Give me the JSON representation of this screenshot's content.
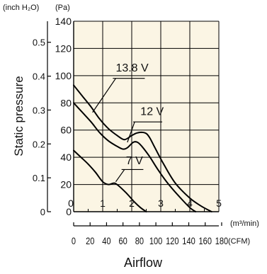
{
  "chart_data": {
    "type": "line",
    "title": "",
    "units": {
      "pressure_primary": "(Pa)",
      "pressure_secondary": "(inch H₂O)",
      "flow_primary": "(m³/min)",
      "flow_secondary": "(CFM)"
    },
    "xlabel": "Airflow",
    "ylabel": "Static pressure",
    "xlim": [
      0,
      5
    ],
    "ylim": [
      0,
      140
    ],
    "grid": true,
    "x_ticks": [
      "0",
      "1",
      "2",
      "3",
      "4",
      "5"
    ],
    "y_ticks": [
      "0",
      "20",
      "40",
      "60",
      "80",
      "100",
      "120",
      "140"
    ],
    "y2_ticks": [
      "0",
      "0.1",
      "0.2",
      "0.3",
      "0.4",
      "0.5"
    ],
    "cfm_ticks": [
      "0",
      "20",
      "40",
      "60",
      "80",
      "100",
      "120",
      "140",
      "160",
      "180"
    ],
    "series": [
      {
        "name": "13.8 V",
        "points": [
          [
            0,
            93
          ],
          [
            0.3,
            85
          ],
          [
            0.6,
            77
          ],
          [
            0.9,
            68
          ],
          [
            1.2,
            61
          ],
          [
            1.5,
            56
          ],
          [
            1.75,
            53
          ],
          [
            2.0,
            56
          ],
          [
            2.2,
            58
          ],
          [
            2.45,
            58
          ],
          [
            2.6,
            55
          ],
          [
            2.8,
            47
          ],
          [
            3.1,
            35
          ],
          [
            3.5,
            21
          ],
          [
            4.0,
            10
          ],
          [
            4.4,
            4
          ],
          [
            4.75,
            0
          ]
        ]
      },
      {
        "name": "12 V",
        "points": [
          [
            0,
            80
          ],
          [
            0.3,
            73
          ],
          [
            0.6,
            66
          ],
          [
            0.9,
            58
          ],
          [
            1.2,
            52
          ],
          [
            1.5,
            48
          ],
          [
            1.7,
            46
          ],
          [
            1.85,
            47
          ],
          [
            2.05,
            51
          ],
          [
            2.2,
            51
          ],
          [
            2.35,
            48
          ],
          [
            2.6,
            41
          ],
          [
            2.9,
            31
          ],
          [
            3.2,
            22
          ],
          [
            3.6,
            12
          ],
          [
            4.0,
            3
          ],
          [
            4.2,
            0
          ]
        ]
      },
      {
        "name": "7 V",
        "points": [
          [
            0,
            45
          ],
          [
            0.25,
            40
          ],
          [
            0.5,
            35
          ],
          [
            0.75,
            29
          ],
          [
            1.0,
            22
          ],
          [
            1.2,
            20
          ],
          [
            1.4,
            21
          ],
          [
            1.55,
            19
          ],
          [
            1.8,
            14
          ],
          [
            2.1,
            7
          ],
          [
            2.3,
            3
          ],
          [
            2.5,
            0
          ]
        ]
      }
    ]
  }
}
